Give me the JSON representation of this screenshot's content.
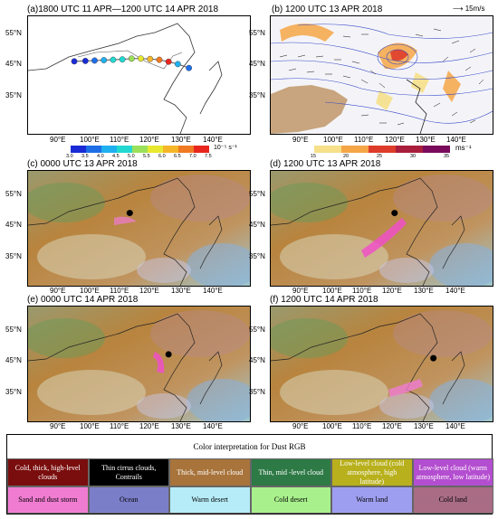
{
  "panels": {
    "a": {
      "title": "(a)1800 UTC 11 APR—1200 UTC 14 APR 2018"
    },
    "b": {
      "title": "(b) 1200 UTC 13 APR 2018",
      "ref_vector": "15m/s"
    },
    "c": {
      "title": "(c) 0000 UTC 13 APR 2018"
    },
    "d": {
      "title": "(d) 1200 UTC 13 APR 2018"
    },
    "e": {
      "title": "(e) 0000 UTC 14 APR 2018"
    },
    "f": {
      "title": "(f) 1200 UTC 14 APR 2018"
    }
  },
  "axes": {
    "lat_labels": [
      "55°N",
      "45°N",
      "35°N"
    ],
    "lon_labels": [
      "90°E",
      "100°E",
      "110°E",
      "120°E",
      "130°E",
      "140°E"
    ]
  },
  "colorbar_a": {
    "ticks": [
      "3.0",
      "3.5",
      "4.0",
      "4.5",
      "5.0",
      "5.5",
      "6.0",
      "6.5",
      "7.0",
      "7.5"
    ],
    "unit": "10⁻⁵ s⁻¹",
    "colors": [
      "#1a2bd6",
      "#1e6ee8",
      "#1fb0f0",
      "#22d8d0",
      "#9be05a",
      "#e8e830",
      "#f5b62a",
      "#f07a22",
      "#e8261e"
    ]
  },
  "colorbar_b": {
    "ticks": [
      "15",
      "20",
      "25",
      "30",
      "35"
    ],
    "unit": "ms⁻¹",
    "colors": [
      "#f6e08a",
      "#f5a646",
      "#de3c2a",
      "#a81e3c",
      "#7a0a5c"
    ]
  },
  "track_points": [
    {
      "lon": 97.5,
      "lat": 46.5,
      "color": "#1a2bd6"
    },
    {
      "lon": 100.5,
      "lat": 46.6,
      "color": "#1a2bd6"
    },
    {
      "lon": 103.0,
      "lat": 46.7,
      "color": "#1e6ee8"
    },
    {
      "lon": 105.5,
      "lat": 46.8,
      "color": "#1fb0f0"
    },
    {
      "lon": 108.0,
      "lat": 46.9,
      "color": "#22d8d0"
    },
    {
      "lon": 110.5,
      "lat": 47.0,
      "color": "#22d8d0"
    },
    {
      "lon": 113.0,
      "lat": 47.2,
      "color": "#9be05a"
    },
    {
      "lon": 115.5,
      "lat": 47.2,
      "color": "#e8e830"
    },
    {
      "lon": 118.0,
      "lat": 47.1,
      "color": "#f5b62a"
    },
    {
      "lon": 120.5,
      "lat": 46.9,
      "color": "#f07a22"
    },
    {
      "lon": 123.0,
      "lat": 46.4,
      "color": "#e8261e"
    },
    {
      "lon": 125.5,
      "lat": 45.8,
      "color": "#1fb0f0"
    },
    {
      "lon": 128.5,
      "lat": 44.8,
      "color": "#1e6ee8"
    }
  ],
  "markers": {
    "c": {
      "lon": 112.5,
      "lat": 47.0
    },
    "d": {
      "lon": 118.5,
      "lat": 47.0
    },
    "e": {
      "lon": 123.0,
      "lat": 45.5
    },
    "f": {
      "lon": 129.0,
      "lat": 44.5
    }
  },
  "legend": {
    "title": "Color interpretation for Dust RGB",
    "row1": [
      {
        "label": "Cold, thick, high-level clouds",
        "bg": "#7a0d0d",
        "fg": "#ffffff"
      },
      {
        "label": "Thin cirrus clouds, Contrails",
        "bg": "#000000",
        "fg": "#ffffff"
      },
      {
        "label": "Thick, mid-level cloud",
        "bg": "#a8743c",
        "fg": "#ffffff"
      },
      {
        "label": "Thin, mid -level cloud",
        "bg": "#2e7a46",
        "fg": "#ffffff"
      },
      {
        "label": "Low-level cloud (cold atmosphere, high latitude)",
        "bg": "#b8b01c",
        "fg": "#ffffff"
      },
      {
        "label": "Low-level cloud (warm atmosphere, low latitude)",
        "bg": "#b44ed0",
        "fg": "#ffffff"
      }
    ],
    "row2": [
      {
        "label": "Sand and dust storm",
        "bg": "#f07cd2",
        "fg": "#000000"
      },
      {
        "label": "Ocean",
        "bg": "#7a7ec8",
        "fg": "#000000"
      },
      {
        "label": "Warm desert",
        "bg": "#b6ecf8",
        "fg": "#000000"
      },
      {
        "label": "Cold desert",
        "bg": "#a8f08c",
        "fg": "#000000"
      },
      {
        "label": "Warm land",
        "bg": "#9e9ef0",
        "fg": "#000000"
      },
      {
        "label": "Cold land",
        "bg": "#a86c84",
        "fg": "#000000"
      }
    ]
  }
}
